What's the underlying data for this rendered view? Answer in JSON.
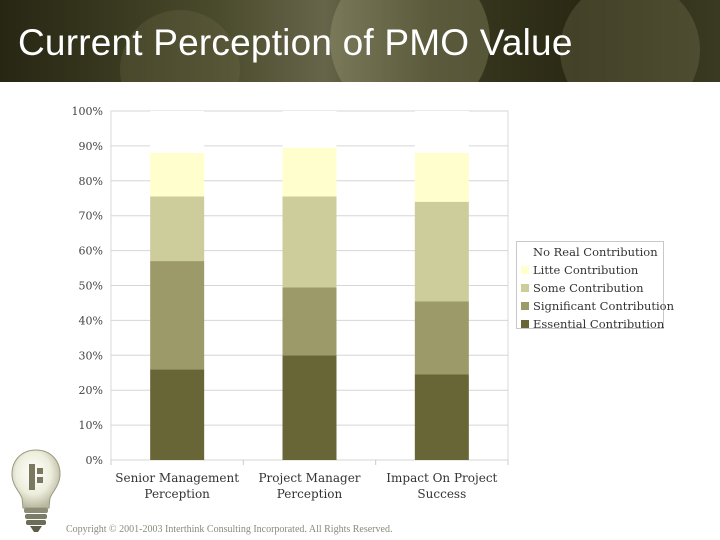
{
  "slide": {
    "title": "Current Perception of PMO Value",
    "copyright": "Copyright © 2001-2003 Interthink Consulting Incorporated. All Rights Reserved."
  },
  "chart_data": {
    "type": "bar",
    "stacked": true,
    "categories": [
      "Senior Management Perception",
      "Project Manager Perception",
      "Impact On Project Success"
    ],
    "category_lines": [
      [
        "Senior Management",
        "Perception"
      ],
      [
        "Project Manager",
        "Perception"
      ],
      [
        "Impact On Project",
        "Success"
      ]
    ],
    "ylim": [
      0,
      100
    ],
    "yticks": [
      "0%",
      "10%",
      "20%",
      "30%",
      "40%",
      "50%",
      "60%",
      "70%",
      "80%",
      "90%",
      "100%"
    ],
    "grid": true,
    "legend_position": "right",
    "series": [
      {
        "name": "Essential Contribution",
        "color": "#686636",
        "values": [
          26,
          30,
          24.5
        ]
      },
      {
        "name": "Significant Contribution",
        "color": "#9c9a68",
        "values": [
          31,
          19.5,
          21
        ]
      },
      {
        "name": "Some Contribution",
        "color": "#cdcc9b",
        "values": [
          18.5,
          26,
          28.5
        ]
      },
      {
        "name": "Litte Contribution",
        "color": "#fffecc",
        "values": [
          12.5,
          14,
          14
        ]
      },
      {
        "name": "No Real Contribution",
        "color": "#ffffff",
        "values": [
          12,
          10.5,
          12
        ]
      }
    ]
  }
}
